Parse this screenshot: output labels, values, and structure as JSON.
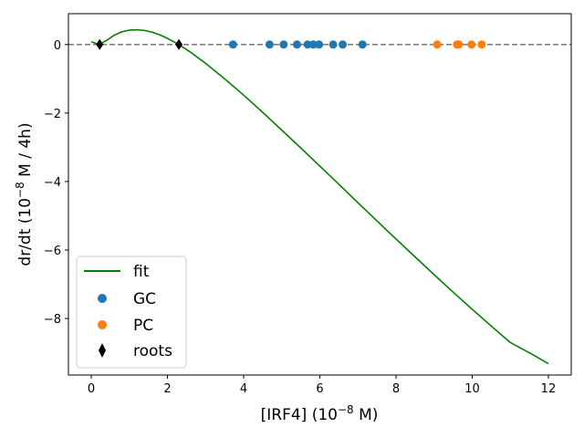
{
  "chart_data": {
    "type": "scatter",
    "xlabel_main": "[IRF4] (10",
    "xlabel_exp": "−8",
    "xlabel_tail": " M)",
    "ylabel_main": "dr/dt (10",
    "ylabel_exp": "−8",
    "ylabel_tail": " M / 4h)",
    "xlim": [
      -0.6,
      12.6
    ],
    "ylim": [
      -9.65,
      0.9
    ],
    "xticks": [
      0,
      2,
      4,
      6,
      8,
      10,
      12
    ],
    "yticks": [
      0,
      -2,
      -4,
      -6,
      -8
    ],
    "tick_labels_x": [
      "0",
      "2",
      "4",
      "6",
      "8",
      "10",
      "12"
    ],
    "tick_labels_y": [
      "0",
      "−2",
      "−4",
      "−6",
      "−8"
    ],
    "reference_line": {
      "y": 0,
      "style": "dashed",
      "color": "#808080"
    },
    "legend_position": "lower-left",
    "series": [
      {
        "name": "fit",
        "kind": "line",
        "color": "#008000",
        "x": [
          0,
          0.2,
          0.4,
          0.6,
          0.8,
          1.0,
          1.2,
          1.4,
          1.6,
          1.8,
          2.0,
          2.3,
          2.6,
          3.0,
          3.5,
          4.0,
          4.5,
          5.0,
          5.5,
          6.0,
          6.5,
          7.0,
          7.5,
          8.0,
          8.5,
          9.0,
          9.5,
          10.0,
          10.5,
          11.0,
          11.5,
          12.0
        ],
        "y": [
          0.08,
          0.0,
          0.12,
          0.27,
          0.37,
          0.42,
          0.43,
          0.41,
          0.36,
          0.28,
          0.18,
          0.0,
          -0.22,
          -0.55,
          -1.0,
          -1.48,
          -1.98,
          -2.5,
          -3.02,
          -3.55,
          -4.08,
          -4.62,
          -5.15,
          -5.68,
          -6.2,
          -6.72,
          -7.23,
          -7.73,
          -8.22,
          -8.7,
          -9.0,
          -9.32
        ]
      },
      {
        "name": "GC",
        "kind": "scatter",
        "color": "#1f77b4",
        "x": [
          3.72,
          4.68,
          5.05,
          5.4,
          5.68,
          5.83,
          5.98,
          6.35,
          6.6,
          7.12
        ],
        "y": [
          0,
          0,
          0,
          0,
          0,
          0,
          0,
          0,
          0,
          0
        ]
      },
      {
        "name": "PC",
        "kind": "scatter",
        "color": "#ff7f0e",
        "x": [
          9.08,
          9.6,
          9.65,
          9.98,
          10.25
        ],
        "y": [
          0,
          0,
          0,
          0,
          0
        ]
      },
      {
        "name": "roots",
        "kind": "scatter",
        "marker": "diamond",
        "color": "#000000",
        "x": [
          0.22,
          2.3
        ],
        "y": [
          0,
          0
        ]
      }
    ]
  }
}
